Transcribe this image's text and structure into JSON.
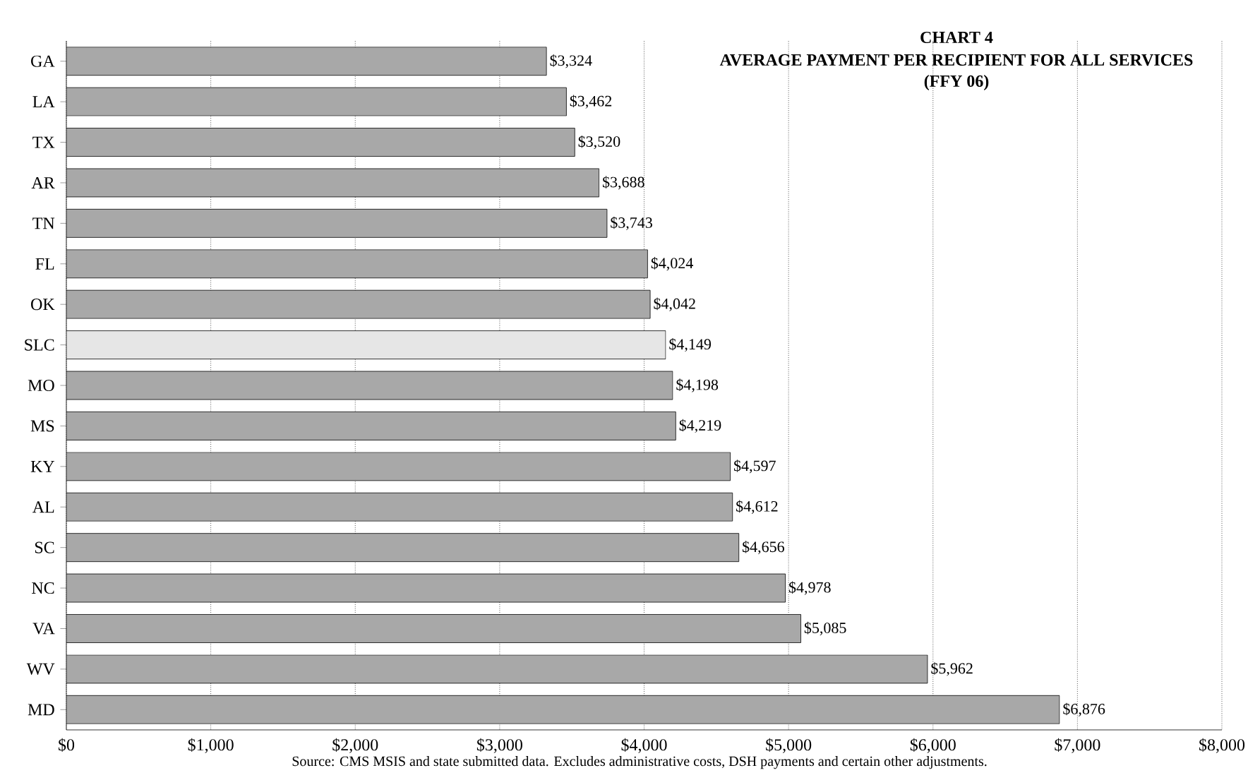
{
  "chart_data": {
    "type": "bar",
    "orientation": "horizontal",
    "title": "CHART 4",
    "subtitle": "AVERAGE PAYMENT PER RECIPIENT FOR ALL SERVICES",
    "annotations": [
      "(FFY 06)",
      "Source: CMS MSIS and state submitted data.  Excludes administrative costs, DSH payments and certain other adjustments."
    ],
    "categories": [
      "GA",
      "LA",
      "TX",
      "AR",
      "TN",
      "FL",
      "OK",
      "SLC",
      "MO",
      "MS",
      "KY",
      "AL",
      "SC",
      "NC",
      "VA",
      "WV",
      "MD"
    ],
    "values": [
      3324,
      3462,
      3520,
      3688,
      3743,
      4024,
      4042,
      4149,
      4198,
      4219,
      4597,
      4612,
      4656,
      4978,
      5085,
      5962,
      6876
    ],
    "value_labels": [
      "$3,324",
      "$3,462",
      "$3,520",
      "$3,688",
      "$3,743",
      "$4,024",
      "$4,042",
      "$4,149",
      "$4,198",
      "$4,219",
      "$4,597",
      "$4,612",
      "$4,656",
      "$4,978",
      "$5,085",
      "$5,962",
      "$6,876"
    ],
    "colors": [
      "#a8a8a8",
      "#a8a8a8",
      "#a8a8a8",
      "#a8a8a8",
      "#a8a8a8",
      "#a8a8a8",
      "#a8a8a8",
      "#e6e6e6",
      "#a8a8a8",
      "#a8a8a8",
      "#a8a8a8",
      "#a8a8a8",
      "#a8a8a8",
      "#a8a8a8",
      "#a8a8a8",
      "#a8a8a8",
      "#a8a8a8"
    ],
    "xlim": [
      0,
      8000
    ],
    "xticks": [
      {
        "value": 0,
        "label": "$0"
      },
      {
        "value": 1000,
        "label": "$1,000"
      },
      {
        "value": 2000,
        "label": "$2,000"
      },
      {
        "value": 3000,
        "label": "$3,000"
      },
      {
        "value": 4000,
        "label": "$4,000"
      },
      {
        "value": 5000,
        "label": "$5,000"
      },
      {
        "value": 6000,
        "label": "$6,000"
      },
      {
        "value": 7000,
        "label": "$7,000"
      },
      {
        "value": 8000,
        "label": "$8,000"
      }
    ],
    "grid": "x"
  }
}
